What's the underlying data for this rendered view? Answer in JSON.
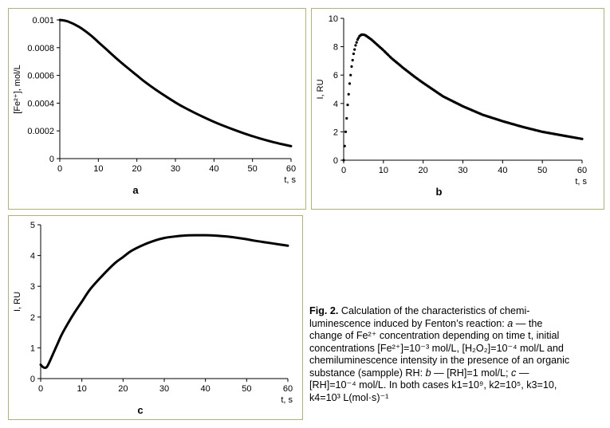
{
  "chart_data": [
    {
      "id": "a",
      "type": "line",
      "panel_label": "a",
      "xlabel": "t, s",
      "ylabel": "[Fe²⁺], mol/L",
      "xlim": [
        0,
        60
      ],
      "ylim": [
        0,
        0.001
      ],
      "xticks": [
        0,
        10,
        20,
        30,
        40,
        50,
        60
      ],
      "yticks": [
        "0",
        "0.0002",
        "0.0004",
        "0.0006",
        "0.0008",
        "0.001"
      ],
      "x": [
        0,
        2,
        5,
        8,
        10,
        12,
        15,
        18,
        20,
        22,
        25,
        28,
        30,
        32,
        35,
        38,
        40,
        42,
        45,
        48,
        50,
        52,
        55,
        58,
        60
      ],
      "y": [
        0.001,
        0.00099,
        0.00095,
        0.00089,
        0.00084,
        0.00079,
        0.000715,
        0.000645,
        0.0006,
        0.000555,
        0.000495,
        0.00044,
        0.000405,
        0.000373,
        0.00033,
        0.00029,
        0.000265,
        0.000242,
        0.00021,
        0.00018,
        0.000162,
        0.000145,
        0.000122,
        0.000102,
        9e-05
      ],
      "grid": false
    },
    {
      "id": "b",
      "type": "scatter",
      "panel_label": "b",
      "xlabel": "t, s",
      "ylabel": "I, RU",
      "xlim": [
        0,
        60
      ],
      "ylim": [
        0,
        10
      ],
      "xticks": [
        0,
        10,
        20,
        30,
        40,
        50,
        60
      ],
      "yticks": [
        "0",
        "2",
        "4",
        "6",
        "8",
        "10"
      ],
      "x": [
        0,
        0.5,
        1,
        1.5,
        2,
        2.5,
        3,
        3.5,
        4,
        4.5,
        5,
        5.5,
        6,
        7,
        8,
        10,
        12,
        15,
        18,
        20,
        25,
        30,
        35,
        40,
        45,
        50,
        55,
        60
      ],
      "y": [
        0,
        2.0,
        3.9,
        5.4,
        6.6,
        7.5,
        8.1,
        8.5,
        8.75,
        8.85,
        8.85,
        8.8,
        8.7,
        8.5,
        8.25,
        7.75,
        7.2,
        6.5,
        5.85,
        5.45,
        4.5,
        3.8,
        3.2,
        2.75,
        2.35,
        2.0,
        1.75,
        1.5
      ],
      "grid": false
    },
    {
      "id": "c",
      "type": "line",
      "panel_label": "c",
      "xlabel": "t, s",
      "ylabel": "I, RU",
      "xlim": [
        0,
        60
      ],
      "ylim": [
        0,
        5
      ],
      "xticks": [
        0,
        10,
        20,
        30,
        40,
        50,
        60
      ],
      "yticks": [
        "0",
        "1",
        "2",
        "3",
        "4",
        "5"
      ],
      "x": [
        0,
        0.5,
        1,
        1.5,
        2,
        3,
        4,
        5,
        6,
        8,
        10,
        12,
        15,
        18,
        20,
        22,
        25,
        28,
        30,
        32,
        35,
        38,
        40,
        42,
        45,
        48,
        50,
        52,
        55,
        58,
        60
      ],
      "y": [
        0.45,
        0.38,
        0.35,
        0.38,
        0.5,
        0.8,
        1.1,
        1.4,
        1.65,
        2.1,
        2.5,
        2.9,
        3.35,
        3.75,
        3.95,
        4.15,
        4.35,
        4.5,
        4.57,
        4.61,
        4.65,
        4.66,
        4.66,
        4.65,
        4.62,
        4.57,
        4.53,
        4.48,
        4.42,
        4.36,
        4.32
      ],
      "grid": false
    }
  ],
  "caption": {
    "label": "Fig. 2.",
    "l1": "Calculation of the characteristics of chemi-",
    "l2a": "luminescence induced by Fenton’s reaction: ",
    "l2b": "a",
    "l2c": " — the",
    "l3": "change of Fe²⁺ concentration depending on time t, initial",
    "l4": "concentrations [Fe²⁺]=10⁻³ mol/L, [H₂O₂]=10⁻⁴ mol/L and",
    "l5": "chemiluminescence intensity in the presence of an organic",
    "l6": "substance (sampple) RH:",
    "l6b": "b",
    "l6c": " — [RH]=1 mol/L;",
    "l6d": "c",
    "l6e": " —",
    "l7": "[RH]=10⁻⁴ mol/L. In both cases k1=10⁹, k2=10⁵, k3=10,",
    "l8": "k4=10³ L(mol·s)⁻¹"
  }
}
